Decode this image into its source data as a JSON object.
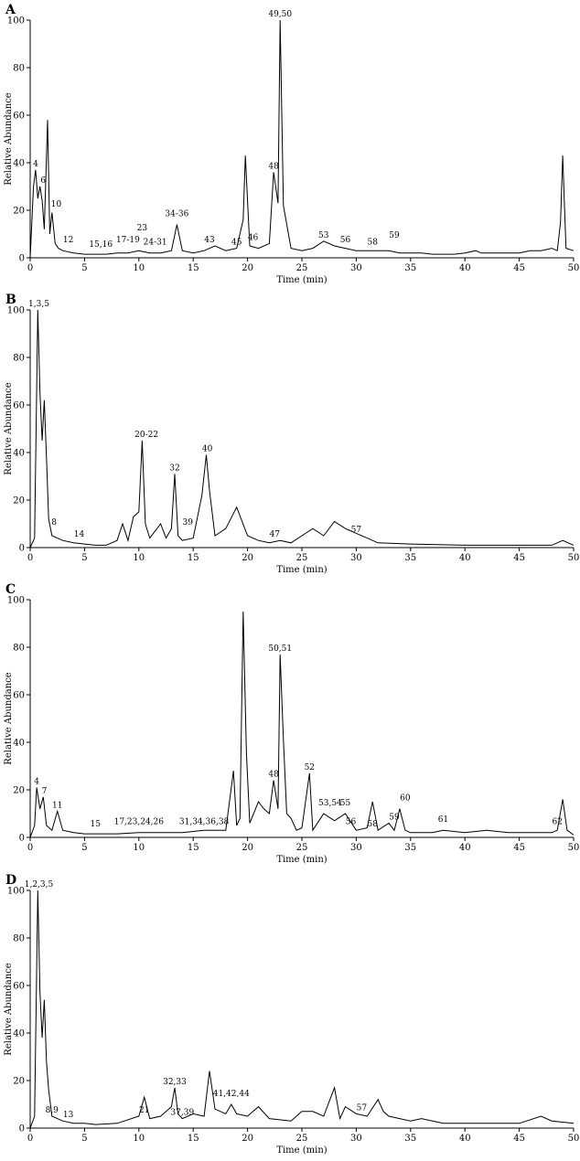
{
  "chart_data": [
    {
      "type": "line",
      "panel": "A",
      "xlabel": "Time (min)",
      "ylabel": "Relative Abundance",
      "xlim": [
        0,
        50
      ],
      "ylim": [
        0,
        100
      ],
      "xticks": [
        0,
        5,
        10,
        15,
        20,
        25,
        30,
        35,
        40,
        45,
        50
      ],
      "yticks": [
        0,
        20,
        40,
        60,
        80,
        100
      ],
      "series": [
        {
          "x": [
            0,
            0.3,
            0.5,
            0.7,
            0.9,
            1.1,
            1.3,
            1.6,
            1.8,
            2.0,
            2.3,
            2.6,
            3.0,
            4.0,
            5.0,
            6.0,
            7.0,
            8.0,
            9.0,
            10.0,
            11.0,
            12.0,
            13.0,
            13.5,
            14.0,
            15.0,
            16.0,
            17.0,
            18.0,
            19.0,
            19.6,
            19.8,
            20.2,
            21.0,
            22.0,
            22.4,
            22.8,
            23.0,
            23.3,
            24.0,
            25.0,
            26.0,
            27.0,
            28.0,
            29.0,
            30.0,
            31.0,
            32.0,
            33.0,
            34.0,
            35.0,
            36.0,
            37.0,
            38.0,
            39.0,
            40.0,
            41.0,
            41.5,
            42.0,
            43.0,
            44.0,
            45.0,
            46.0,
            47.0,
            48.0,
            48.5,
            48.8,
            49.0,
            49.3,
            50.0
          ],
          "y": [
            0,
            30,
            37,
            25,
            30,
            24,
            12,
            58,
            10,
            19,
            6,
            4,
            3,
            2,
            1.5,
            1.5,
            1.5,
            2,
            2,
            3,
            2,
            2,
            3,
            14,
            3,
            2,
            3,
            5,
            3,
            4,
            16,
            43,
            5,
            4,
            6,
            36,
            23,
            100,
            22,
            4,
            3,
            4,
            7,
            5,
            4,
            3,
            3,
            3,
            3,
            2,
            2,
            2,
            1.5,
            1.5,
            1.5,
            2,
            3,
            2,
            2,
            2,
            2,
            2,
            3,
            3,
            4,
            3,
            15,
            43,
            4,
            3
          ]
        }
      ],
      "peak_labels": [
        {
          "x": 23.0,
          "y": 100,
          "text": "49,50"
        },
        {
          "x": 22.4,
          "y": 36,
          "text": "48"
        },
        {
          "x": 0.5,
          "y": 37,
          "text": "4"
        },
        {
          "x": 1.2,
          "y": 30,
          "text": "6"
        },
        {
          "x": 2.4,
          "y": 20,
          "text": "10"
        },
        {
          "x": 3.5,
          "y": 5,
          "text": "12"
        },
        {
          "x": 6.5,
          "y": 3,
          "text": "15,16"
        },
        {
          "x": 9.0,
          "y": 5,
          "text": "17-19"
        },
        {
          "x": 10.3,
          "y": 10,
          "text": "23"
        },
        {
          "x": 11.5,
          "y": 4,
          "text": "24-31"
        },
        {
          "x": 13.5,
          "y": 16,
          "text": "34-36"
        },
        {
          "x": 16.5,
          "y": 5,
          "text": "43"
        },
        {
          "x": 19.0,
          "y": 4,
          "text": "45"
        },
        {
          "x": 20.5,
          "y": 6,
          "text": "46"
        },
        {
          "x": 27.0,
          "y": 7,
          "text": "53"
        },
        {
          "x": 29.0,
          "y": 5,
          "text": "56"
        },
        {
          "x": 31.5,
          "y": 4,
          "text": "58"
        },
        {
          "x": 33.5,
          "y": 7,
          "text": "59"
        }
      ]
    },
    {
      "type": "line",
      "panel": "B",
      "xlabel": "Time (min)",
      "ylabel": "Relative Abundance",
      "xlim": [
        0,
        50
      ],
      "ylim": [
        0,
        100
      ],
      "xticks": [
        0,
        5,
        10,
        15,
        20,
        25,
        30,
        35,
        40,
        45,
        50
      ],
      "yticks": [
        0,
        20,
        40,
        60,
        80,
        100
      ],
      "series": [
        {
          "x": [
            0,
            0.4,
            0.7,
            0.9,
            1.1,
            1.3,
            1.5,
            1.7,
            2.0,
            2.5,
            3.0,
            4.0,
            5.0,
            6.0,
            7.0,
            8.0,
            8.5,
            9.0,
            9.5,
            10.0,
            10.3,
            10.6,
            11.0,
            12.0,
            12.5,
            13.0,
            13.3,
            13.6,
            14.0,
            15.0,
            15.8,
            16.2,
            16.5,
            17.0,
            18.0,
            19.0,
            20.0,
            21.0,
            22.0,
            23.0,
            24.0,
            25.0,
            26.0,
            27.0,
            28.0,
            29.0,
            30.0,
            31.0,
            32.0,
            35.0,
            40.0,
            45.0,
            48.0,
            49.0,
            50.0
          ],
          "y": [
            0,
            4,
            100,
            65,
            45,
            62,
            38,
            12,
            5,
            4,
            3,
            2,
            1.5,
            1,
            1,
            3,
            10,
            3,
            13,
            15,
            45,
            10,
            4,
            10,
            4,
            8,
            31,
            5,
            3,
            4,
            22,
            39,
            24,
            5,
            8,
            17,
            5,
            3,
            2,
            3,
            2,
            5,
            8,
            5,
            11,
            8,
            6,
            4,
            2,
            1.5,
            1,
            1,
            1,
            3,
            1
          ]
        }
      ],
      "peak_labels": [
        {
          "x": 0.8,
          "y": 100,
          "text": "1,3,5"
        },
        {
          "x": 10.7,
          "y": 45,
          "text": "20-22"
        },
        {
          "x": 13.3,
          "y": 31,
          "text": "32"
        },
        {
          "x": 16.3,
          "y": 39,
          "text": "40"
        },
        {
          "x": 2.2,
          "y": 8,
          "text": "8"
        },
        {
          "x": 4.5,
          "y": 3,
          "text": "14"
        },
        {
          "x": 14.5,
          "y": 8,
          "text": "39"
        },
        {
          "x": 22.5,
          "y": 3,
          "text": "47"
        },
        {
          "x": 30.0,
          "y": 5,
          "text": "57"
        }
      ]
    },
    {
      "type": "line",
      "panel": "C",
      "xlabel": "Time (min)",
      "ylabel": "Relative Abundance",
      "xlim": [
        0,
        50
      ],
      "ylim": [
        0,
        100
      ],
      "xticks": [
        0,
        5,
        10,
        15,
        20,
        25,
        30,
        35,
        40,
        45,
        50
      ],
      "yticks": [
        0,
        20,
        40,
        60,
        80,
        100
      ],
      "series": [
        {
          "x": [
            0,
            0.4,
            0.6,
            0.9,
            1.2,
            1.5,
            2.0,
            2.5,
            3.0,
            4.0,
            5.0,
            6.0,
            8.0,
            10.0,
            12.0,
            14.0,
            16.0,
            17.0,
            18.0,
            18.7,
            19.0,
            19.3,
            19.6,
            19.9,
            20.2,
            21.0,
            21.5,
            22.0,
            22.4,
            22.8,
            23.0,
            23.3,
            23.6,
            24.0,
            24.5,
            25.0,
            25.7,
            26.0,
            27.0,
            28.0,
            29.0,
            30.0,
            31.0,
            31.5,
            32.0,
            33.0,
            33.5,
            34.0,
            34.5,
            35.0,
            37.0,
            38.0,
            40.0,
            42.0,
            44.0,
            46.0,
            48.0,
            48.5,
            49.0,
            49.4,
            50.0
          ],
          "y": [
            0,
            5,
            21,
            12,
            17,
            5,
            3,
            11,
            3,
            2,
            1.5,
            1.5,
            1.5,
            2,
            2,
            2,
            3,
            3,
            3,
            28,
            5,
            8,
            95,
            35,
            6,
            15,
            12,
            10,
            24,
            12,
            77,
            41,
            10,
            8,
            3,
            4,
            27,
            3,
            10,
            7,
            10,
            3,
            4,
            15,
            3,
            6,
            3,
            12,
            3,
            2,
            2,
            3,
            2,
            3,
            2,
            2,
            2,
            3,
            16,
            3,
            1
          ]
        }
      ],
      "peak_labels": [
        {
          "x": 19.6,
          "y": 95,
          "text": ""
        },
        {
          "x": 23.0,
          "y": 77,
          "text": "50,51"
        },
        {
          "x": 22.4,
          "y": 24,
          "text": "48"
        },
        {
          "x": 25.7,
          "y": 27,
          "text": "52"
        },
        {
          "x": 0.6,
          "y": 21,
          "text": "4"
        },
        {
          "x": 1.3,
          "y": 17,
          "text": "7"
        },
        {
          "x": 2.5,
          "y": 11,
          "text": "11"
        },
        {
          "x": 6.0,
          "y": 3,
          "text": "15"
        },
        {
          "x": 10.0,
          "y": 4,
          "text": "17,23,24,26"
        },
        {
          "x": 16.0,
          "y": 4,
          "text": "31,34,36,38"
        },
        {
          "x": 27.6,
          "y": 12,
          "text": "53,54"
        },
        {
          "x": 29.0,
          "y": 12,
          "text": "55"
        },
        {
          "x": 29.5,
          "y": 4,
          "text": "56"
        },
        {
          "x": 31.5,
          "y": 3,
          "text": "58"
        },
        {
          "x": 33.5,
          "y": 6,
          "text": "59"
        },
        {
          "x": 34.5,
          "y": 14,
          "text": "60"
        },
        {
          "x": 38.0,
          "y": 5,
          "text": "61"
        },
        {
          "x": 48.5,
          "y": 4,
          "text": "62"
        }
      ]
    },
    {
      "type": "line",
      "panel": "D",
      "xlabel": "Time (min)",
      "ylabel": "Relative Abundance",
      "xlim": [
        0,
        50
      ],
      "ylim": [
        0,
        100
      ],
      "xticks": [
        0,
        5,
        10,
        15,
        20,
        25,
        30,
        35,
        40,
        45,
        50
      ],
      "yticks": [
        0,
        20,
        40,
        60,
        80,
        100
      ],
      "series": [
        {
          "x": [
            0,
            0.4,
            0.7,
            0.9,
            1.1,
            1.3,
            1.5,
            1.7,
            2.0,
            2.5,
            3.0,
            4.0,
            5.0,
            6.0,
            8.0,
            10.0,
            10.5,
            11.0,
            12.0,
            13.0,
            13.3,
            13.6,
            14.0,
            15.0,
            16.0,
            16.5,
            17.0,
            18.0,
            18.5,
            19.0,
            20.0,
            21.0,
            22.0,
            24.0,
            25.0,
            26.0,
            27.0,
            28.0,
            28.5,
            29.0,
            30.0,
            31.0,
            32.0,
            32.5,
            33.0,
            34.0,
            35.0,
            36.0,
            38.0,
            40.0,
            42.0,
            45.0,
            47.0,
            48.0,
            50.0
          ],
          "y": [
            0,
            5,
            100,
            57,
            38,
            54,
            28,
            16,
            5,
            4,
            3,
            2,
            2,
            1.5,
            2,
            5,
            13,
            4,
            5,
            9,
            17,
            6,
            4,
            6,
            5,
            24,
            8,
            6,
            10,
            6,
            5,
            9,
            4,
            3,
            7,
            7,
            5,
            17,
            4,
            9,
            6,
            5,
            12,
            7,
            5,
            4,
            3,
            4,
            2,
            2,
            2,
            2,
            5,
            3,
            2
          ]
        }
      ],
      "peak_labels": [
        {
          "x": 0.8,
          "y": 100,
          "text": "1,2,3,5"
        },
        {
          "x": 13.3,
          "y": 17,
          "text": "32,33"
        },
        {
          "x": 18.5,
          "y": 12,
          "text": "41,42,44"
        },
        {
          "x": 10.5,
          "y": 5,
          "text": "21"
        },
        {
          "x": 2.0,
          "y": 5,
          "text": "8,9"
        },
        {
          "x": 3.5,
          "y": 3,
          "text": "13"
        },
        {
          "x": 14.0,
          "y": 4,
          "text": "37,39"
        },
        {
          "x": 30.5,
          "y": 6,
          "text": "57"
        }
      ]
    }
  ]
}
